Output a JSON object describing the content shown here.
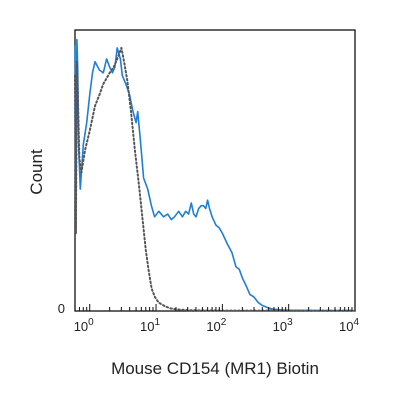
{
  "chart_data": {
    "type": "line",
    "title": "",
    "xlabel": "Mouse CD154 (MR1) Biotin",
    "ylabel": "Count",
    "xscale": "log",
    "xlim": [
      0.6,
      10000
    ],
    "ylim": [
      0,
      100
    ],
    "grid": false,
    "legend": "none",
    "x_ticks": [
      {
        "base": "10",
        "exp": "0",
        "value": 1
      },
      {
        "base": "10",
        "exp": "1",
        "value": 10
      },
      {
        "base": "10",
        "exp": "2",
        "value": 100
      },
      {
        "base": "10",
        "exp": "3",
        "value": 1000
      },
      {
        "base": "10",
        "exp": "4",
        "value": 10000
      }
    ],
    "y_ticks": [
      {
        "label": "0",
        "value": 0
      }
    ],
    "series": [
      {
        "style": "solid",
        "color": "#1f7fd4",
        "points": [
          [
            0.6,
            96
          ],
          [
            0.62,
            30
          ],
          [
            0.64,
            98
          ],
          [
            0.66,
            88
          ],
          [
            0.68,
            60
          ],
          [
            0.72,
            44
          ],
          [
            0.75,
            50
          ],
          [
            0.8,
            60
          ],
          [
            0.9,
            68
          ],
          [
            1.0,
            78
          ],
          [
            1.1,
            86
          ],
          [
            1.2,
            90
          ],
          [
            1.4,
            87
          ],
          [
            1.6,
            86
          ],
          [
            1.8,
            91
          ],
          [
            2.0,
            88
          ],
          [
            2.2,
            86
          ],
          [
            2.4,
            88
          ],
          [
            2.6,
            95
          ],
          [
            2.9,
            91
          ],
          [
            3.1,
            85
          ],
          [
            3.5,
            82
          ],
          [
            4.0,
            78
          ],
          [
            4.5,
            72
          ],
          [
            5.0,
            68
          ],
          [
            5.3,
            72
          ],
          [
            5.8,
            62
          ],
          [
            6.5,
            48
          ],
          [
            7.5,
            44
          ],
          [
            8.5,
            38
          ],
          [
            9.5,
            34
          ],
          [
            11,
            36
          ],
          [
            13,
            34
          ],
          [
            15,
            35
          ],
          [
            17,
            33
          ],
          [
            19,
            34
          ],
          [
            22,
            36
          ],
          [
            25,
            34
          ],
          [
            28,
            36
          ],
          [
            31,
            35
          ],
          [
            34,
            39
          ],
          [
            37,
            35
          ],
          [
            40,
            34
          ],
          [
            44,
            37
          ],
          [
            48,
            38
          ],
          [
            52,
            38
          ],
          [
            56,
            37
          ],
          [
            60,
            40
          ],
          [
            64,
            37
          ],
          [
            70,
            34
          ],
          [
            80,
            31
          ],
          [
            90,
            30
          ],
          [
            100,
            28
          ],
          [
            120,
            24
          ],
          [
            140,
            21
          ],
          [
            160,
            16
          ],
          [
            180,
            15
          ],
          [
            200,
            12
          ],
          [
            230,
            9
          ],
          [
            260,
            6
          ],
          [
            300,
            5
          ],
          [
            350,
            3
          ],
          [
            400,
            2
          ],
          [
            450,
            1.5
          ],
          [
            500,
            1
          ],
          [
            600,
            0.6
          ],
          [
            800,
            0.4
          ],
          [
            1000,
            0.3
          ],
          [
            2000,
            0.2
          ],
          [
            5000,
            0.15
          ],
          [
            10000,
            0.1
          ]
        ]
      },
      {
        "style": "dotted",
        "color": "#555555",
        "points": [
          [
            0.6,
            85
          ],
          [
            0.62,
            28
          ],
          [
            0.64,
            90
          ],
          [
            0.66,
            80
          ],
          [
            0.7,
            55
          ],
          [
            0.75,
            50
          ],
          [
            0.85,
            58
          ],
          [
            1.0,
            65
          ],
          [
            1.2,
            74
          ],
          [
            1.4,
            78
          ],
          [
            1.6,
            82
          ],
          [
            1.8,
            84
          ],
          [
            2.0,
            86
          ],
          [
            2.3,
            88
          ],
          [
            2.6,
            91
          ],
          [
            3.0,
            95
          ],
          [
            3.3,
            90
          ],
          [
            3.7,
            83
          ],
          [
            4.2,
            72
          ],
          [
            4.8,
            58
          ],
          [
            5.5,
            46
          ],
          [
            6.2,
            34
          ],
          [
            7.0,
            22
          ],
          [
            7.8,
            14
          ],
          [
            8.6,
            8
          ],
          [
            9.6,
            5
          ],
          [
            11,
            3
          ],
          [
            13,
            2
          ],
          [
            16,
            1
          ],
          [
            20,
            0.6
          ],
          [
            30,
            0.3
          ],
          [
            50,
            0.2
          ],
          [
            100,
            0.15
          ],
          [
            1000,
            0.1
          ],
          [
            10000,
            0.1
          ]
        ]
      }
    ]
  }
}
